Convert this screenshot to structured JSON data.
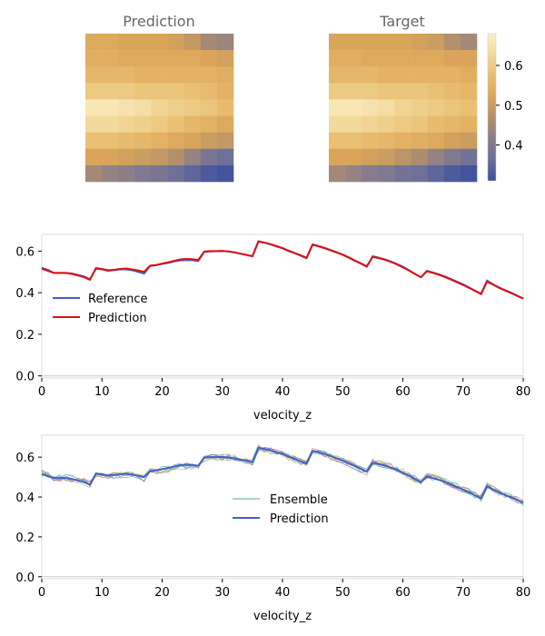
{
  "chart_data": [
    {
      "type": "heatmap",
      "title": "Prediction",
      "rows": [
        [
          0.53,
          0.53,
          0.52,
          0.52,
          0.52,
          0.51,
          0.49,
          0.45,
          0.44
        ],
        [
          0.54,
          0.54,
          0.53,
          0.53,
          0.53,
          0.53,
          0.53,
          0.52,
          0.51
        ],
        [
          0.56,
          0.56,
          0.56,
          0.55,
          0.55,
          0.55,
          0.55,
          0.55,
          0.54
        ],
        [
          0.6,
          0.6,
          0.6,
          0.59,
          0.59,
          0.59,
          0.58,
          0.57,
          0.55
        ],
        [
          0.66,
          0.66,
          0.65,
          0.64,
          0.62,
          0.61,
          0.6,
          0.59,
          0.57
        ],
        [
          0.63,
          0.63,
          0.62,
          0.61,
          0.6,
          0.58,
          0.56,
          0.55,
          0.53
        ],
        [
          0.58,
          0.58,
          0.57,
          0.56,
          0.55,
          0.53,
          0.52,
          0.5,
          0.49
        ],
        [
          0.52,
          0.52,
          0.51,
          0.5,
          0.49,
          0.47,
          0.43,
          0.39,
          0.37
        ],
        [
          0.45,
          0.43,
          0.42,
          0.4,
          0.39,
          0.37,
          0.35,
          0.33,
          0.32
        ]
      ]
    },
    {
      "type": "heatmap",
      "title": "Target",
      "rows": [
        [
          0.52,
          0.52,
          0.52,
          0.52,
          0.52,
          0.51,
          0.5,
          0.47,
          0.45
        ],
        [
          0.54,
          0.54,
          0.53,
          0.53,
          0.53,
          0.53,
          0.53,
          0.52,
          0.52
        ],
        [
          0.56,
          0.56,
          0.56,
          0.55,
          0.55,
          0.55,
          0.55,
          0.55,
          0.54
        ],
        [
          0.6,
          0.6,
          0.6,
          0.59,
          0.59,
          0.59,
          0.58,
          0.57,
          0.56
        ],
        [
          0.66,
          0.66,
          0.65,
          0.64,
          0.62,
          0.61,
          0.6,
          0.59,
          0.58
        ],
        [
          0.63,
          0.63,
          0.62,
          0.61,
          0.6,
          0.59,
          0.57,
          0.56,
          0.55
        ],
        [
          0.58,
          0.58,
          0.57,
          0.56,
          0.55,
          0.54,
          0.53,
          0.51,
          0.5
        ],
        [
          0.52,
          0.52,
          0.51,
          0.5,
          0.48,
          0.46,
          0.43,
          0.4,
          0.38
        ],
        [
          0.45,
          0.43,
          0.41,
          0.4,
          0.38,
          0.37,
          0.35,
          0.33,
          0.32
        ]
      ],
      "colorbar": {
        "range": [
          0.31,
          0.68
        ],
        "ticks": [
          "0.4",
          "0.5",
          "0.6"
        ],
        "tick_values": [
          0.4,
          0.5,
          0.6
        ],
        "colormap": [
          "#3b4e9c",
          "#6a6e9a",
          "#8a7d8a",
          "#b28f6c",
          "#dba659",
          "#e9bd70",
          "#f2d89a",
          "#fbf0c3"
        ]
      }
    },
    {
      "type": "line",
      "xlabel": "velocity_z",
      "xlim": [
        0,
        80
      ],
      "ylim": [
        -0.01,
        0.68
      ],
      "xticks": [
        "0",
        "10",
        "20",
        "30",
        "40",
        "50",
        "60",
        "70",
        "80"
      ],
      "xtick_values": [
        0,
        10,
        20,
        30,
        40,
        50,
        60,
        70,
        80
      ],
      "yticks": [
        "0.0",
        "0.2",
        "0.4",
        "0.6"
      ],
      "ytick_values": [
        0.0,
        0.2,
        0.4,
        0.6
      ],
      "legend": "center-left",
      "series": [
        {
          "name": "Reference",
          "color": "#4060c8",
          "values": [
            0.52,
            0.51,
            0.495,
            0.495,
            0.495,
            0.492,
            0.485,
            0.478,
            0.465,
            0.515,
            0.512,
            0.505,
            0.508,
            0.512,
            0.512,
            0.508,
            0.5,
            0.492,
            0.528,
            0.532,
            0.538,
            0.543,
            0.55,
            0.555,
            0.556,
            0.556,
            0.552,
            0.596,
            0.598,
            0.599,
            0.6,
            0.598,
            0.593,
            0.587,
            0.581,
            0.575,
            0.645,
            0.64,
            0.632,
            0.622,
            0.613,
            0.6,
            0.59,
            0.578,
            0.565,
            0.63,
            0.622,
            0.613,
            0.603,
            0.593,
            0.582,
            0.568,
            0.553,
            0.54,
            0.525,
            0.575,
            0.568,
            0.56,
            0.55,
            0.538,
            0.525,
            0.508,
            0.49,
            0.474,
            0.505,
            0.497,
            0.488,
            0.478,
            0.466,
            0.453,
            0.44,
            0.425,
            0.41,
            0.395,
            0.458,
            0.44,
            0.425,
            0.412,
            0.4,
            0.385,
            0.372
          ]
        },
        {
          "name": "Prediction",
          "color": "#e01010",
          "values": [
            0.515,
            0.505,
            0.495,
            0.495,
            0.495,
            0.49,
            0.483,
            0.475,
            0.462,
            0.518,
            0.514,
            0.508,
            0.51,
            0.514,
            0.516,
            0.512,
            0.507,
            0.5,
            0.53,
            0.533,
            0.54,
            0.546,
            0.553,
            0.56,
            0.562,
            0.561,
            0.557,
            0.598,
            0.6,
            0.6,
            0.601,
            0.598,
            0.594,
            0.588,
            0.582,
            0.575,
            0.647,
            0.641,
            0.633,
            0.624,
            0.615,
            0.602,
            0.591,
            0.58,
            0.568,
            0.632,
            0.624,
            0.615,
            0.605,
            0.594,
            0.583,
            0.57,
            0.555,
            0.541,
            0.527,
            0.572,
            0.566,
            0.558,
            0.548,
            0.536,
            0.522,
            0.507,
            0.49,
            0.474,
            0.503,
            0.495,
            0.486,
            0.475,
            0.463,
            0.45,
            0.437,
            0.423,
            0.408,
            0.393,
            0.453,
            0.438,
            0.423,
            0.41,
            0.398,
            0.385,
            0.372
          ]
        }
      ]
    },
    {
      "type": "line",
      "xlabel": "velocity_z",
      "xlim": [
        0,
        80
      ],
      "ylim": [
        -0.01,
        0.71
      ],
      "xticks": [
        "0",
        "10",
        "20",
        "30",
        "40",
        "50",
        "60",
        "70",
        "80"
      ],
      "xtick_values": [
        0,
        10,
        20,
        30,
        40,
        50,
        60,
        70,
        80
      ],
      "yticks": [
        "0.0",
        "0.2",
        "0.4",
        "0.6"
      ],
      "ytick_values": [
        0.0,
        0.2,
        0.4,
        0.6
      ],
      "legend": "center",
      "series": [
        {
          "name": "Ensemble",
          "color": "#5aa5a0",
          "members": 8,
          "member_colors": [
            "#5aa5a0",
            "#e8a24e",
            "#9b6fc0",
            "#7fbf5f",
            "#e07070",
            "#5a8fd0",
            "#c8b05a",
            "#6cc0c0"
          ],
          "values": [
            0.52,
            0.51,
            0.495,
            0.495,
            0.495,
            0.492,
            0.485,
            0.478,
            0.465,
            0.515,
            0.512,
            0.505,
            0.508,
            0.512,
            0.512,
            0.508,
            0.5,
            0.492,
            0.528,
            0.532,
            0.538,
            0.543,
            0.55,
            0.555,
            0.556,
            0.556,
            0.552,
            0.596,
            0.598,
            0.599,
            0.6,
            0.598,
            0.593,
            0.587,
            0.581,
            0.575,
            0.645,
            0.64,
            0.632,
            0.622,
            0.613,
            0.6,
            0.59,
            0.578,
            0.565,
            0.63,
            0.622,
            0.613,
            0.603,
            0.593,
            0.582,
            0.568,
            0.553,
            0.54,
            0.525,
            0.575,
            0.568,
            0.56,
            0.55,
            0.538,
            0.525,
            0.508,
            0.49,
            0.474,
            0.505,
            0.497,
            0.488,
            0.478,
            0.466,
            0.453,
            0.44,
            0.425,
            0.41,
            0.395,
            0.458,
            0.44,
            0.425,
            0.412,
            0.4,
            0.385,
            0.372
          ]
        },
        {
          "name": "Prediction",
          "color": "#4060c8",
          "values": [
            0.515,
            0.505,
            0.495,
            0.495,
            0.495,
            0.49,
            0.483,
            0.475,
            0.462,
            0.518,
            0.514,
            0.508,
            0.51,
            0.514,
            0.516,
            0.512,
            0.507,
            0.5,
            0.53,
            0.533,
            0.54,
            0.546,
            0.553,
            0.56,
            0.562,
            0.561,
            0.557,
            0.598,
            0.6,
            0.6,
            0.601,
            0.598,
            0.594,
            0.588,
            0.582,
            0.575,
            0.647,
            0.641,
            0.633,
            0.624,
            0.615,
            0.602,
            0.591,
            0.58,
            0.568,
            0.632,
            0.624,
            0.615,
            0.605,
            0.594,
            0.583,
            0.57,
            0.555,
            0.541,
            0.527,
            0.572,
            0.566,
            0.558,
            0.548,
            0.536,
            0.522,
            0.507,
            0.49,
            0.474,
            0.503,
            0.495,
            0.486,
            0.475,
            0.463,
            0.45,
            0.437,
            0.423,
            0.408,
            0.393,
            0.453,
            0.438,
            0.423,
            0.41,
            0.398,
            0.385,
            0.372
          ]
        }
      ]
    }
  ]
}
